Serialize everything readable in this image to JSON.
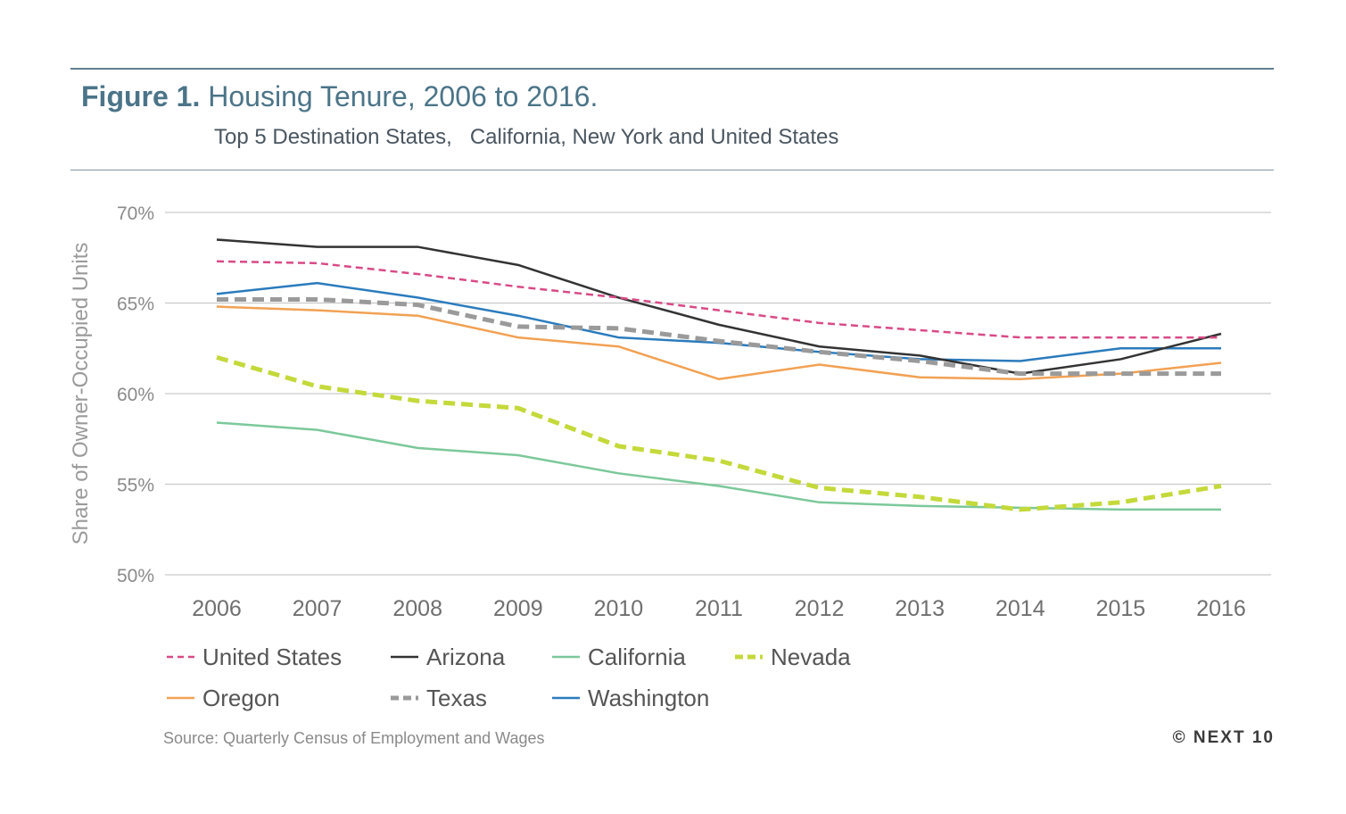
{
  "header": {
    "figure_label": "Figure 1.",
    "title": "Housing Tenure, 2006 to 2016.",
    "subtitle": "Top 5 Destination States,   California, New York and United States"
  },
  "footer": {
    "source": "Source: Quarterly Census of Employment and Wages",
    "brand": "© NEXT 10"
  },
  "chart_data": {
    "type": "line",
    "title": "Housing Tenure, 2006 to 2016.",
    "subtitle": "Top 5 Destination States,   California, New York and United States",
    "xlabel": "",
    "ylabel": "Share of Owner-Occupied Units",
    "x": [
      2006,
      2007,
      2008,
      2009,
      2010,
      2011,
      2012,
      2013,
      2014,
      2015,
      2016
    ],
    "x_tick_labels": [
      "2006",
      "2007",
      "2008",
      "2009",
      "2010",
      "2011",
      "2012",
      "2013",
      "2014",
      "2015",
      "2016"
    ],
    "ylim": [
      50,
      70
    ],
    "y_ticks": [
      50,
      55,
      60,
      65,
      70
    ],
    "y_tick_labels": [
      "50%",
      "55%",
      "60%",
      "65%",
      "70%"
    ],
    "grid": true,
    "legend_position": "bottom",
    "series": [
      {
        "name": "United States",
        "color": "#d94a86",
        "style": "dashed-thin",
        "values": [
          67.3,
          67.2,
          66.6,
          65.9,
          65.3,
          64.6,
          63.9,
          63.5,
          63.1,
          63.1,
          63.1
        ]
      },
      {
        "name": "Arizona",
        "color": "#333333",
        "style": "solid",
        "values": [
          68.5,
          68.1,
          68.1,
          67.1,
          65.3,
          63.8,
          62.6,
          62.1,
          61.1,
          61.9,
          63.3
        ]
      },
      {
        "name": "California",
        "color": "#7cc89a",
        "style": "solid",
        "values": [
          58.4,
          58.0,
          57.0,
          56.6,
          55.6,
          54.9,
          54.0,
          53.8,
          53.7,
          53.6,
          53.6
        ]
      },
      {
        "name": "Nevada",
        "color": "#c4d93a",
        "style": "dashed-thick",
        "values": [
          62.0,
          60.4,
          59.6,
          59.2,
          57.1,
          56.3,
          54.8,
          54.3,
          53.6,
          54.0,
          54.9
        ]
      },
      {
        "name": "Oregon",
        "color": "#f2a154",
        "style": "solid",
        "values": [
          64.8,
          64.6,
          64.3,
          63.1,
          62.6,
          60.8,
          61.6,
          60.9,
          60.8,
          61.1,
          61.7
        ]
      },
      {
        "name": "Texas",
        "color": "#9a9a9a",
        "style": "dashed-thick",
        "values": [
          65.2,
          65.2,
          64.9,
          63.7,
          63.6,
          62.9,
          62.3,
          61.8,
          61.1,
          61.1,
          61.1
        ]
      },
      {
        "name": "Washington",
        "color": "#2b7bbd",
        "style": "solid",
        "values": [
          65.5,
          66.1,
          65.3,
          64.3,
          63.1,
          62.8,
          62.3,
          61.9,
          61.8,
          62.5,
          62.5
        ]
      }
    ]
  }
}
